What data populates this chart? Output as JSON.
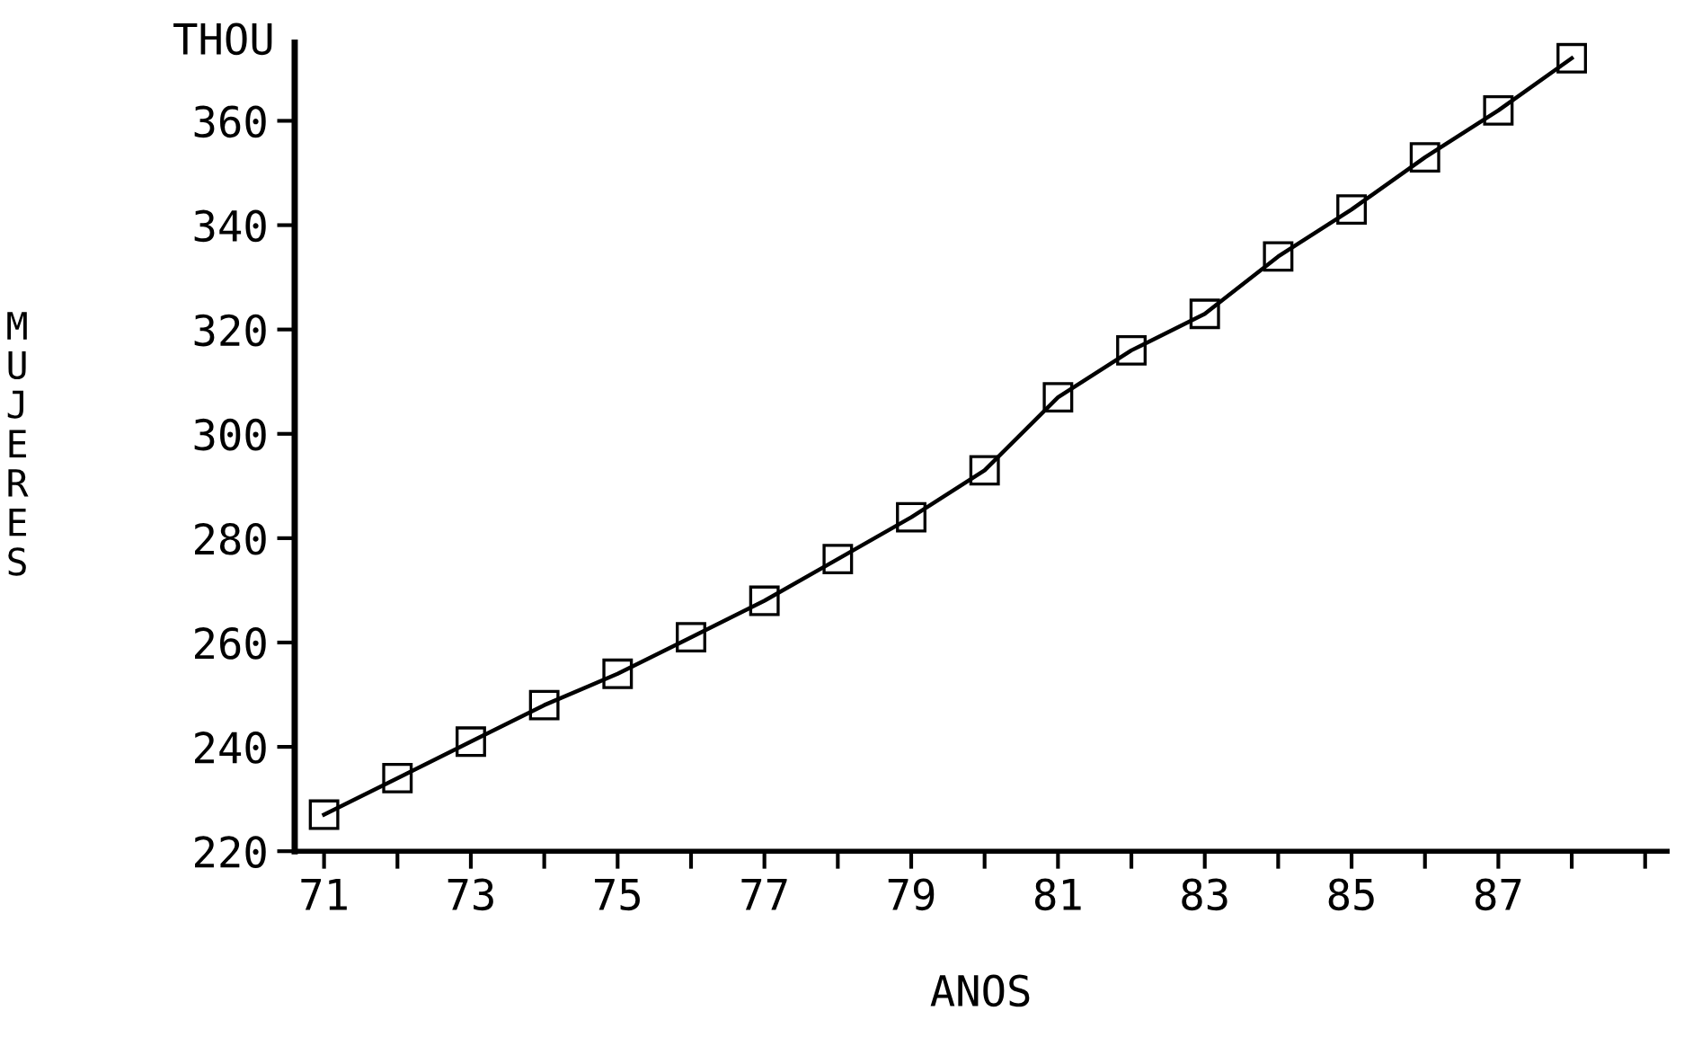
{
  "chart_data": {
    "type": "line",
    "xlabel": "ANOS",
    "ylabel": "MUJERES",
    "annotations": [
      "THOU"
    ],
    "x": [
      71,
      72,
      73,
      74,
      75,
      76,
      77,
      78,
      79,
      80,
      81,
      82,
      83,
      84,
      85,
      86,
      87,
      88
    ],
    "series": [
      {
        "color": "#000000",
        "values": [
          227,
          234,
          241,
          248,
          254,
          261,
          268,
          276,
          284,
          293,
          307,
          316,
          323,
          334,
          343,
          353,
          362,
          372
        ]
      }
    ],
    "marker": "square",
    "line_style": "solid",
    "grid": false,
    "xlim": [
      70.6,
      89.3
    ],
    "ylim": [
      220,
      375
    ],
    "xticks": [
      71,
      {
        "value": 72,
        "label": null
      },
      73,
      {
        "value": 74,
        "label": null
      },
      75,
      {
        "value": 76,
        "label": null
      },
      77,
      {
        "value": 78,
        "label": null
      },
      79,
      {
        "value": 80,
        "label": null
      },
      81,
      {
        "value": 82,
        "label": null
      },
      83,
      {
        "value": 84,
        "label": null
      },
      85,
      {
        "value": 86,
        "label": null
      },
      87,
      {
        "value": 88,
        "label": null
      },
      {
        "value": 89,
        "label": null
      }
    ],
    "yticks": [
      220,
      240,
      260,
      280,
      300,
      320,
      340,
      360
    ]
  }
}
